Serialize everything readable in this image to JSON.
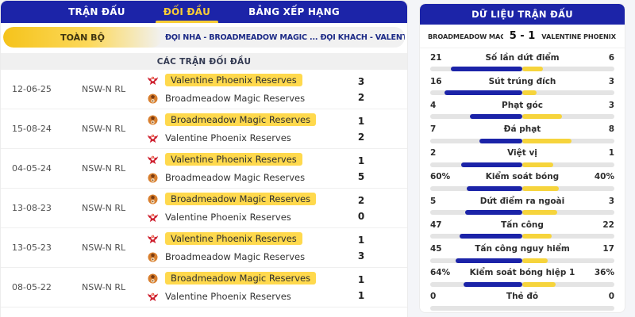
{
  "left_panel": {
    "tabs": [
      {
        "label": "TRẬN ĐẤU",
        "active": false
      },
      {
        "label": "ĐỐI ĐẦU",
        "active": true
      },
      {
        "label": "BẢNG XẾP HẠNG",
        "active": false
      }
    ],
    "filter": {
      "button_label": "TOÀN BỘ",
      "header_text": "ĐỘI NHÀ - BROADMEADOW MAGIC ... ĐỘI KHÁCH - VALENTINE PHOENIX ..."
    },
    "section_title": "CÁC TRẬN ĐỐI ĐẦU",
    "matches": [
      {
        "date": "12-06-25",
        "league": "NSW-N RL",
        "home": {
          "name": "Valentine Phoenix Reserves",
          "icon": "phoenix-crest",
          "highlight": true,
          "score": "3"
        },
        "away": {
          "name": "Broadmeadow Magic Reserves",
          "icon": "magic-crest",
          "highlight": false,
          "score": "2"
        }
      },
      {
        "date": "15-08-24",
        "league": "NSW-N RL",
        "home": {
          "name": "Broadmeadow Magic Reserves",
          "icon": "magic-crest",
          "highlight": true,
          "score": "1"
        },
        "away": {
          "name": "Valentine Phoenix Reserves",
          "icon": "phoenix-crest",
          "highlight": false,
          "score": "2"
        }
      },
      {
        "date": "04-05-24",
        "league": "NSW-N RL",
        "home": {
          "name": "Valentine Phoenix Reserves",
          "icon": "phoenix-crest",
          "highlight": true,
          "score": "1"
        },
        "away": {
          "name": "Broadmeadow Magic Reserves",
          "icon": "magic-crest",
          "highlight": false,
          "score": "5"
        }
      },
      {
        "date": "13-08-23",
        "league": "NSW-N RL",
        "home": {
          "name": "Broadmeadow Magic Reserves",
          "icon": "magic-crest",
          "highlight": true,
          "score": "2"
        },
        "away": {
          "name": "Valentine Phoenix Reserves",
          "icon": "phoenix-crest",
          "highlight": false,
          "score": "0"
        }
      },
      {
        "date": "13-05-23",
        "league": "NSW-N RL",
        "home": {
          "name": "Valentine Phoenix Reserves",
          "icon": "phoenix-crest",
          "highlight": true,
          "score": "1"
        },
        "away": {
          "name": "Broadmeadow Magic Reserves",
          "icon": "magic-crest",
          "highlight": false,
          "score": "3"
        }
      },
      {
        "date": "08-05-22",
        "league": "NSW-N RL",
        "home": {
          "name": "Broadmeadow Magic Reserves",
          "icon": "magic-crest",
          "highlight": true,
          "score": "1"
        },
        "away": {
          "name": "Valentine Phoenix Reserves",
          "icon": "phoenix-crest",
          "highlight": false,
          "score": "1"
        }
      }
    ]
  },
  "right_panel": {
    "title": "DỮ LIỆU TRẬN ĐẤU",
    "home_team": "BROADMEADOW MAGI...",
    "score": "5 - 1",
    "away_team": "VALENTINE PHOENIX RE...",
    "colors": {
      "home_bar": "#1b23a8",
      "away_bar": "#f6d43c",
      "accent_navy": "#1c24a8",
      "accent_yellow": "#f8cd36"
    },
    "stats": [
      {
        "home": "21",
        "label": "Số lần dứt điểm",
        "away": "6"
      },
      {
        "home": "16",
        "label": "Sút trúng đích",
        "away": "3"
      },
      {
        "home": "4",
        "label": "Phạt góc",
        "away": "3"
      },
      {
        "home": "7",
        "label": "Đá phạt",
        "away": "8"
      },
      {
        "home": "2",
        "label": "Việt vị",
        "away": "1"
      },
      {
        "home": "60%",
        "label": "Kiểm soát bóng",
        "away": "40%"
      },
      {
        "home": "5",
        "label": "Dứt điểm ra ngoài",
        "away": "3"
      },
      {
        "home": "47",
        "label": "Tấn công",
        "away": "22"
      },
      {
        "home": "45",
        "label": "Tấn công nguy hiểm",
        "away": "17"
      },
      {
        "home": "64%",
        "label": "Kiểm soát bóng hiệp 1",
        "away": "36%"
      },
      {
        "home": "0",
        "label": "Thẻ đỏ",
        "away": "0"
      }
    ]
  }
}
